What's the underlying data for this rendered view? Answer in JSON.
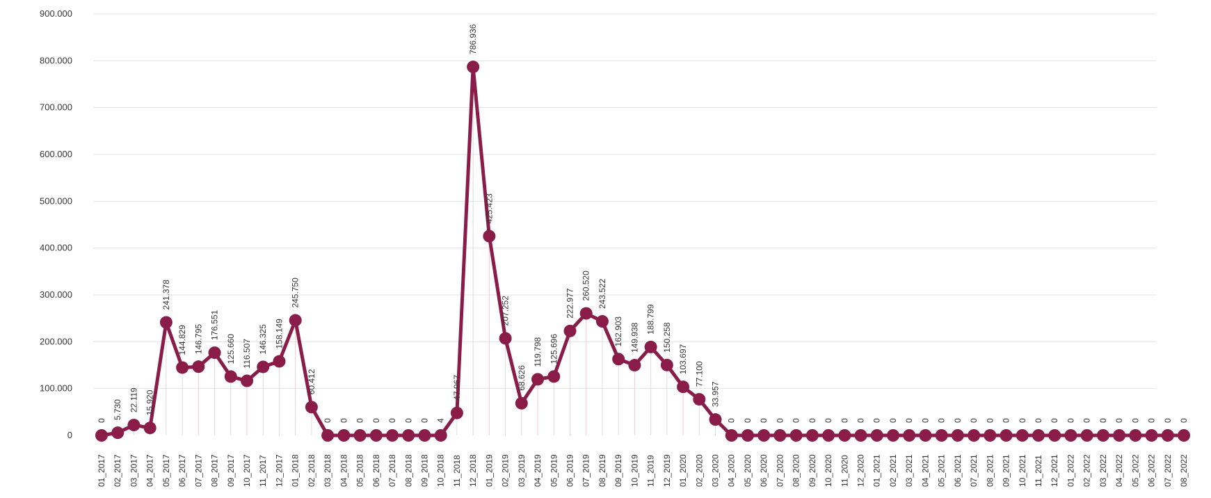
{
  "colors": {
    "series": "#8a1c4a",
    "grid": "#e3e3e3",
    "text": "#333333"
  },
  "chart_data": {
    "type": "line",
    "title": "",
    "xlabel": "",
    "ylabel": "",
    "ylim": [
      0,
      900000
    ],
    "y_ticks": [
      {
        "value": 0,
        "label": "0"
      },
      {
        "value": 100000,
        "label": "100.000"
      },
      {
        "value": 200000,
        "label": "200.000"
      },
      {
        "value": 300000,
        "label": "300.000"
      },
      {
        "value": 400000,
        "label": "400.000"
      },
      {
        "value": 500000,
        "label": "500.000"
      },
      {
        "value": 600000,
        "label": "600.000"
      },
      {
        "value": 700000,
        "label": "700.000"
      },
      {
        "value": 800000,
        "label": "800.000"
      },
      {
        "value": 900000,
        "label": "900.000"
      }
    ],
    "grid": true,
    "legend": "none",
    "categories": [
      "01_2017",
      "02_2017",
      "03_2017",
      "04_2017",
      "05_2017",
      "06_2017",
      "07_2017",
      "08_2017",
      "09_2017",
      "10_2017",
      "11_2017",
      "12_2017",
      "01_2018",
      "02_2018",
      "03_2018",
      "04_2018",
      "05_2018",
      "06_2018",
      "07_2018",
      "08_2018",
      "09_2018",
      "10_2018",
      "11_2018",
      "12_2018",
      "01_2019",
      "02_2019",
      "03_2019",
      "04_2019",
      "05_2019",
      "06_2019",
      "07_2019",
      "08_2019",
      "09_2019",
      "10_2019",
      "11_2019",
      "12_2019",
      "01_2020",
      "02_2020",
      "03_2020",
      "04_2020",
      "05_2020",
      "06_2020",
      "07_2020",
      "08_2020",
      "09_2020",
      "10_2020",
      "11_2020",
      "12_2020",
      "01_2021",
      "02_2021",
      "03_2021",
      "04_2021",
      "05_2021",
      "06_2021",
      "07_2021",
      "08_2021",
      "09_2021",
      "10_2021",
      "11_2021",
      "12_2021",
      "01_2022",
      "02_2022",
      "03_2022",
      "04_2022",
      "05_2022",
      "06_2022",
      "07_2022",
      "08_2022"
    ],
    "values": [
      0,
      5730,
      22119,
      15920,
      241378,
      144829,
      146795,
      176551,
      125660,
      116507,
      146325,
      158149,
      245750,
      60412,
      0,
      0,
      0,
      0,
      0,
      0,
      0,
      4,
      47967,
      786936,
      425423,
      207252,
      68626,
      119798,
      125696,
      222977,
      260520,
      243522,
      162903,
      149938,
      188799,
      150258,
      103697,
      77100,
      33957,
      0,
      0,
      0,
      0,
      0,
      0,
      0,
      0,
      0,
      0,
      0,
      0,
      0,
      0,
      0,
      0,
      0,
      0,
      0,
      0,
      0,
      0,
      0,
      0,
      0,
      0,
      0,
      0,
      0
    ],
    "data_labels": [
      "0",
      "5.730",
      "22.119",
      "15.920",
      "241.378",
      "144.829",
      "146.795",
      "176.551",
      "125.660",
      "116.507",
      "146.325",
      "158.149",
      "245.750",
      "60.412",
      "0",
      "0",
      "0",
      "0",
      "0",
      "0",
      "0",
      "4",
      "47.967",
      "786.936",
      "425.423",
      "207.252",
      "68.626",
      "119.798",
      "125.696",
      "222.977",
      "260.520",
      "243.522",
      "162.903",
      "149.938",
      "188.799",
      "150.258",
      "103.697",
      "77.100",
      "33.957",
      "0",
      "0",
      "0",
      "0",
      "0",
      "0",
      "0",
      "0",
      "0",
      "0",
      "0",
      "0",
      "0",
      "0",
      "0",
      "0",
      "0",
      "0",
      "0",
      "0",
      "0",
      "0",
      "0",
      "0",
      "0",
      "0",
      "0",
      "0",
      "0"
    ]
  }
}
